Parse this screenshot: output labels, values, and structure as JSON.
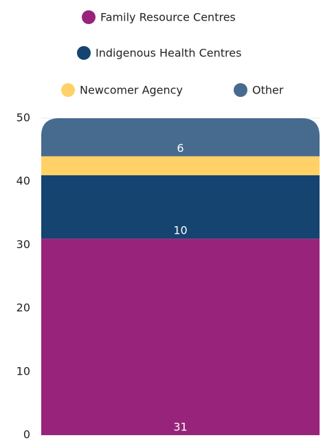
{
  "chart_data": {
    "type": "stacked_bar",
    "categories": [
      null
    ],
    "series": [
      {
        "name": "Family Resource Centres",
        "color": "#97237a",
        "values": [
          31
        ],
        "data_labels": true
      },
      {
        "name": "Indigenous Health Centres",
        "color": "#154470",
        "values": [
          10
        ],
        "data_labels": true
      },
      {
        "name": "Newcomer Agency",
        "color": "#ffd166",
        "values": [
          3
        ],
        "data_labels": false
      },
      {
        "name": "Other",
        "color": "#466b8e",
        "values": [
          6
        ],
        "data_labels": true
      }
    ],
    "ylim": [
      0,
      50
    ],
    "yticks": [
      0,
      10,
      20,
      30,
      40,
      50
    ],
    "grid": true
  }
}
